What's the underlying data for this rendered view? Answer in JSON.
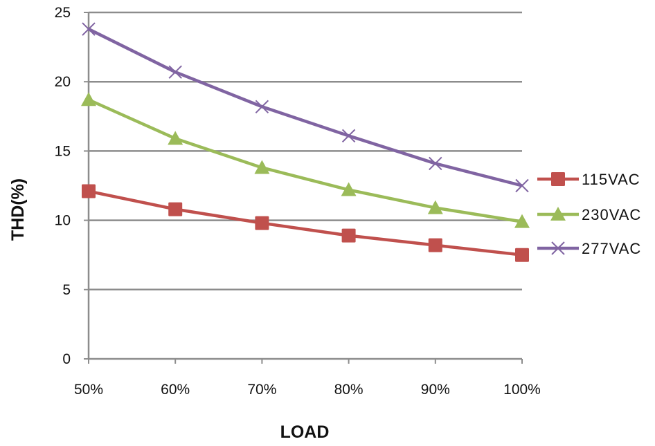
{
  "chart_data": {
    "type": "line",
    "title": "",
    "xlabel": "LOAD",
    "ylabel": "THD(%)",
    "categories": [
      "50%",
      "60%",
      "70%",
      "80%",
      "90%",
      "100%"
    ],
    "ylim": [
      0,
      25
    ],
    "yticks": [
      0,
      5,
      10,
      15,
      20,
      25
    ],
    "grid": true,
    "legend_position": "right",
    "series": [
      {
        "name": "115VAC",
        "marker": "square",
        "color": "#C0504D",
        "values": [
          12.1,
          10.8,
          9.8,
          8.9,
          8.2,
          7.5
        ]
      },
      {
        "name": "230VAC",
        "marker": "triangle",
        "color": "#9BBB59",
        "values": [
          18.7,
          15.9,
          13.8,
          12.2,
          10.9,
          9.9
        ]
      },
      {
        "name": "277VAC",
        "marker": "x",
        "color": "#8064A2",
        "values": [
          23.8,
          20.7,
          18.2,
          16.1,
          14.1,
          12.5
        ]
      }
    ]
  }
}
